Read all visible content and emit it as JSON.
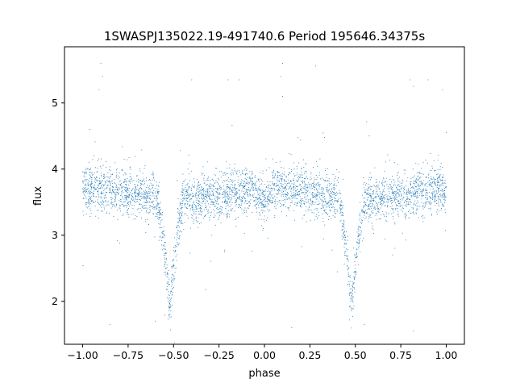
{
  "chart_data": {
    "type": "scatter",
    "title": "1SWASPJ135022.19-491740.6 Period 195646.34375s",
    "xlabel": "phase",
    "ylabel": "flux",
    "xlim": [
      -1.1,
      1.1
    ],
    "ylim": [
      1.35,
      5.85
    ],
    "x_ticks": [
      -1.0,
      -0.75,
      -0.5,
      -0.25,
      0.0,
      0.25,
      0.5,
      0.75,
      1.0
    ],
    "x_tick_labels": [
      "−1.00",
      "−0.75",
      "−0.50",
      "−0.25",
      "0.00",
      "0.25",
      "0.50",
      "0.75",
      "1.00"
    ],
    "y_ticks": [
      2,
      3,
      4,
      5
    ],
    "y_tick_labels": [
      "2",
      "3",
      "4",
      "5"
    ],
    "grid": false,
    "series": [
      {
        "color": "#1f77b4",
        "marker": "dot",
        "baseline_flux": 3.62,
        "scatter_sigma": 0.17,
        "eclipses": [
          {
            "phase": -0.52,
            "min_flux": 2.0,
            "half_width": 0.075
          },
          {
            "phase": 0.48,
            "min_flux": 2.0,
            "half_width": 0.075
          }
        ],
        "x": [
          -1.0,
          -0.9,
          -0.8,
          -0.7,
          -0.6,
          -0.56,
          -0.54,
          -0.52,
          -0.5,
          -0.48,
          -0.45,
          -0.4,
          -0.3,
          -0.2,
          -0.1,
          0.0,
          0.1,
          0.2,
          0.3,
          0.4,
          0.44,
          0.46,
          0.48,
          0.5,
          0.52,
          0.55,
          0.6,
          0.7,
          0.8,
          0.9,
          1.0
        ],
        "y": [
          3.55,
          3.6,
          3.7,
          3.65,
          3.55,
          3.0,
          2.4,
          2.0,
          2.4,
          3.0,
          3.55,
          3.65,
          3.7,
          3.62,
          3.5,
          3.4,
          3.55,
          3.7,
          3.68,
          3.55,
          3.0,
          2.4,
          2.0,
          2.4,
          3.0,
          3.55,
          3.65,
          3.68,
          3.7,
          3.62,
          3.5
        ],
        "outliers": [
          {
            "x": -0.9,
            "y": 5.6
          },
          {
            "x": -0.89,
            "y": 5.4
          },
          {
            "x": -0.91,
            "y": 5.2
          },
          {
            "x": 0.1,
            "y": 5.6
          },
          {
            "x": 0.09,
            "y": 5.4
          },
          {
            "x": 0.1,
            "y": 5.1
          },
          {
            "x": -0.2,
            "y": 5.35
          },
          {
            "x": -0.14,
            "y": 5.35
          },
          {
            "x": 0.8,
            "y": 5.35
          },
          {
            "x": 0.82,
            "y": 5.25
          },
          {
            "x": 0.9,
            "y": 5.35
          },
          {
            "x": 0.98,
            "y": 5.2
          },
          {
            "x": -0.4,
            "y": 5.35
          },
          {
            "x": -0.96,
            "y": 4.6
          },
          {
            "x": 1.0,
            "y": 4.55
          },
          {
            "x": -0.85,
            "y": 1.65
          },
          {
            "x": 0.82,
            "y": 1.55
          },
          {
            "x": 0.15,
            "y": 1.6
          },
          {
            "x": -0.6,
            "y": 1.7
          },
          {
            "x": 0.55,
            "y": 1.65
          }
        ]
      }
    ]
  }
}
